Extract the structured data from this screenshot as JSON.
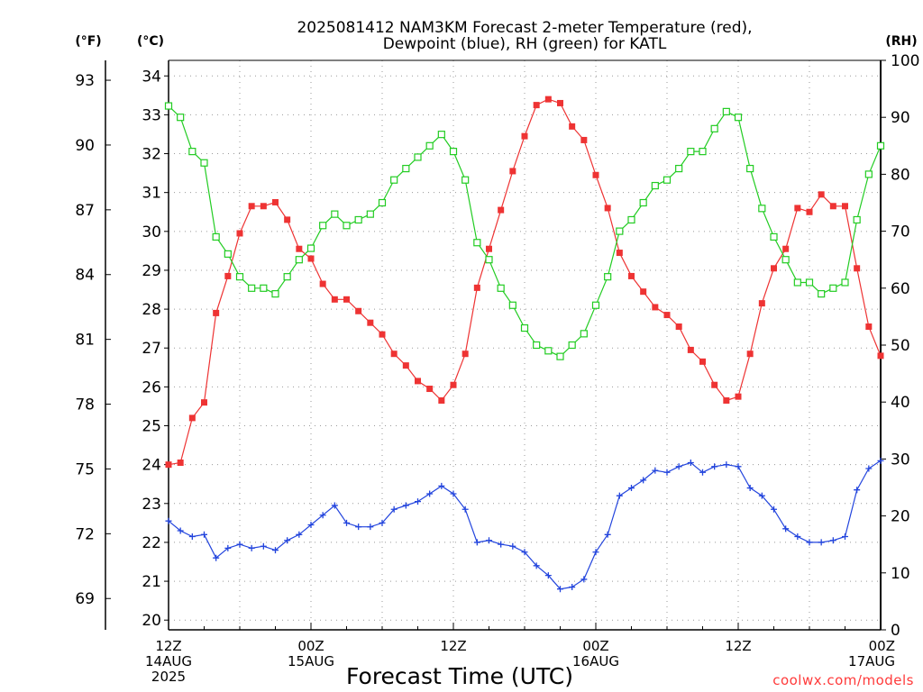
{
  "chart_data": {
    "type": "line",
    "title_line1": "2025081412 NAM3KM Forecast 2-meter Temperature (red),",
    "title_line2": "Dewpoint (blue), RH (green) for KATL",
    "xlabel": "Forecast Time (UTC)",
    "credit": "coolwx.com/models",
    "units": {
      "fahrenheit": "(°F)",
      "celsius": "(°C)",
      "rh": "(RH)"
    },
    "x_ticks": [
      {
        "hour": 0,
        "line1": "12Z",
        "line2": "14AUG",
        "line3": "2025"
      },
      {
        "hour": 12,
        "line1": "00Z",
        "line2": "15AUG",
        "line3": ""
      },
      {
        "hour": 24,
        "line1": "12Z",
        "line2": "",
        "line3": ""
      },
      {
        "hour": 36,
        "line1": "00Z",
        "line2": "16AUG",
        "line3": ""
      },
      {
        "hour": 48,
        "line1": "12Z",
        "line2": "",
        "line3": ""
      },
      {
        "hour": 60,
        "line1": "00Z",
        "line2": "17AUG",
        "line3": ""
      }
    ],
    "xlim_hours": [
      0,
      60
    ],
    "celsius_axis": {
      "ylim": [
        19.75,
        34.4
      ],
      "ticks": [
        20,
        21,
        22,
        23,
        24,
        25,
        26,
        27,
        28,
        29,
        30,
        31,
        32,
        33,
        34
      ]
    },
    "fahrenheit_axis": {
      "ticks": [
        69,
        72,
        75,
        78,
        81,
        84,
        87,
        90,
        93
      ]
    },
    "rh_axis": {
      "ylim": [
        0,
        100
      ],
      "ticks": [
        0,
        10,
        20,
        30,
        40,
        50,
        60,
        70,
        80,
        90,
        100
      ]
    },
    "grid": true,
    "series": [
      {
        "name": "Temperature",
        "color": "#ee3333",
        "marker": "filled-square",
        "unit": "C",
        "values": [
          24.0,
          24.05,
          25.2,
          25.6,
          27.9,
          28.85,
          29.95,
          30.65,
          30.65,
          30.75,
          30.3,
          29.55,
          29.3,
          28.65,
          28.25,
          28.25,
          27.95,
          27.65,
          27.35,
          26.85,
          26.55,
          26.15,
          25.95,
          25.65,
          26.05,
          26.85,
          28.55,
          29.55,
          30.55,
          31.55,
          32.45,
          33.25,
          33.4,
          33.3,
          32.7,
          32.35,
          31.45,
          30.6,
          29.45,
          28.85,
          28.45,
          28.05,
          27.85,
          27.55,
          26.95,
          26.65,
          26.05,
          25.65,
          25.75,
          26.85,
          28.15,
          29.05,
          29.55,
          30.6,
          30.5,
          30.95,
          30.65,
          30.65,
          29.05,
          27.55,
          26.8
        ]
      },
      {
        "name": "Dewpoint",
        "color": "#2244dd",
        "marker": "plus",
        "unit": "C",
        "values": [
          22.55,
          22.3,
          22.15,
          22.2,
          21.6,
          21.85,
          21.95,
          21.85,
          21.9,
          21.8,
          22.05,
          22.2,
          22.45,
          22.7,
          22.95,
          22.5,
          22.4,
          22.4,
          22.5,
          22.85,
          22.95,
          23.05,
          23.25,
          23.45,
          23.25,
          22.85,
          22.0,
          22.05,
          21.95,
          21.9,
          21.75,
          21.4,
          21.15,
          20.8,
          20.85,
          21.05,
          21.75,
          22.2,
          23.2,
          23.4,
          23.6,
          23.85,
          23.8,
          23.95,
          24.05,
          23.8,
          23.95,
          24.0,
          23.95,
          23.4,
          23.2,
          22.85,
          22.35,
          22.15,
          22.0,
          22.0,
          22.05,
          22.15,
          23.35,
          23.9,
          24.1
        ]
      },
      {
        "name": "RH",
        "color": "#22cc22",
        "marker": "open-square",
        "unit": "%",
        "values": [
          92,
          90,
          84,
          82,
          69,
          66,
          62,
          60,
          60,
          59,
          62,
          65,
          67,
          71,
          73,
          71,
          72,
          73,
          75,
          79,
          81,
          83,
          85,
          87,
          84,
          79,
          68,
          65,
          60,
          57,
          53,
          50,
          49,
          48,
          50,
          52,
          57,
          62,
          70,
          72,
          75,
          78,
          79,
          81,
          84,
          84,
          88,
          91,
          90,
          81,
          74,
          69,
          65,
          61,
          61,
          59,
          60,
          61,
          72,
          80,
          85
        ]
      }
    ]
  }
}
